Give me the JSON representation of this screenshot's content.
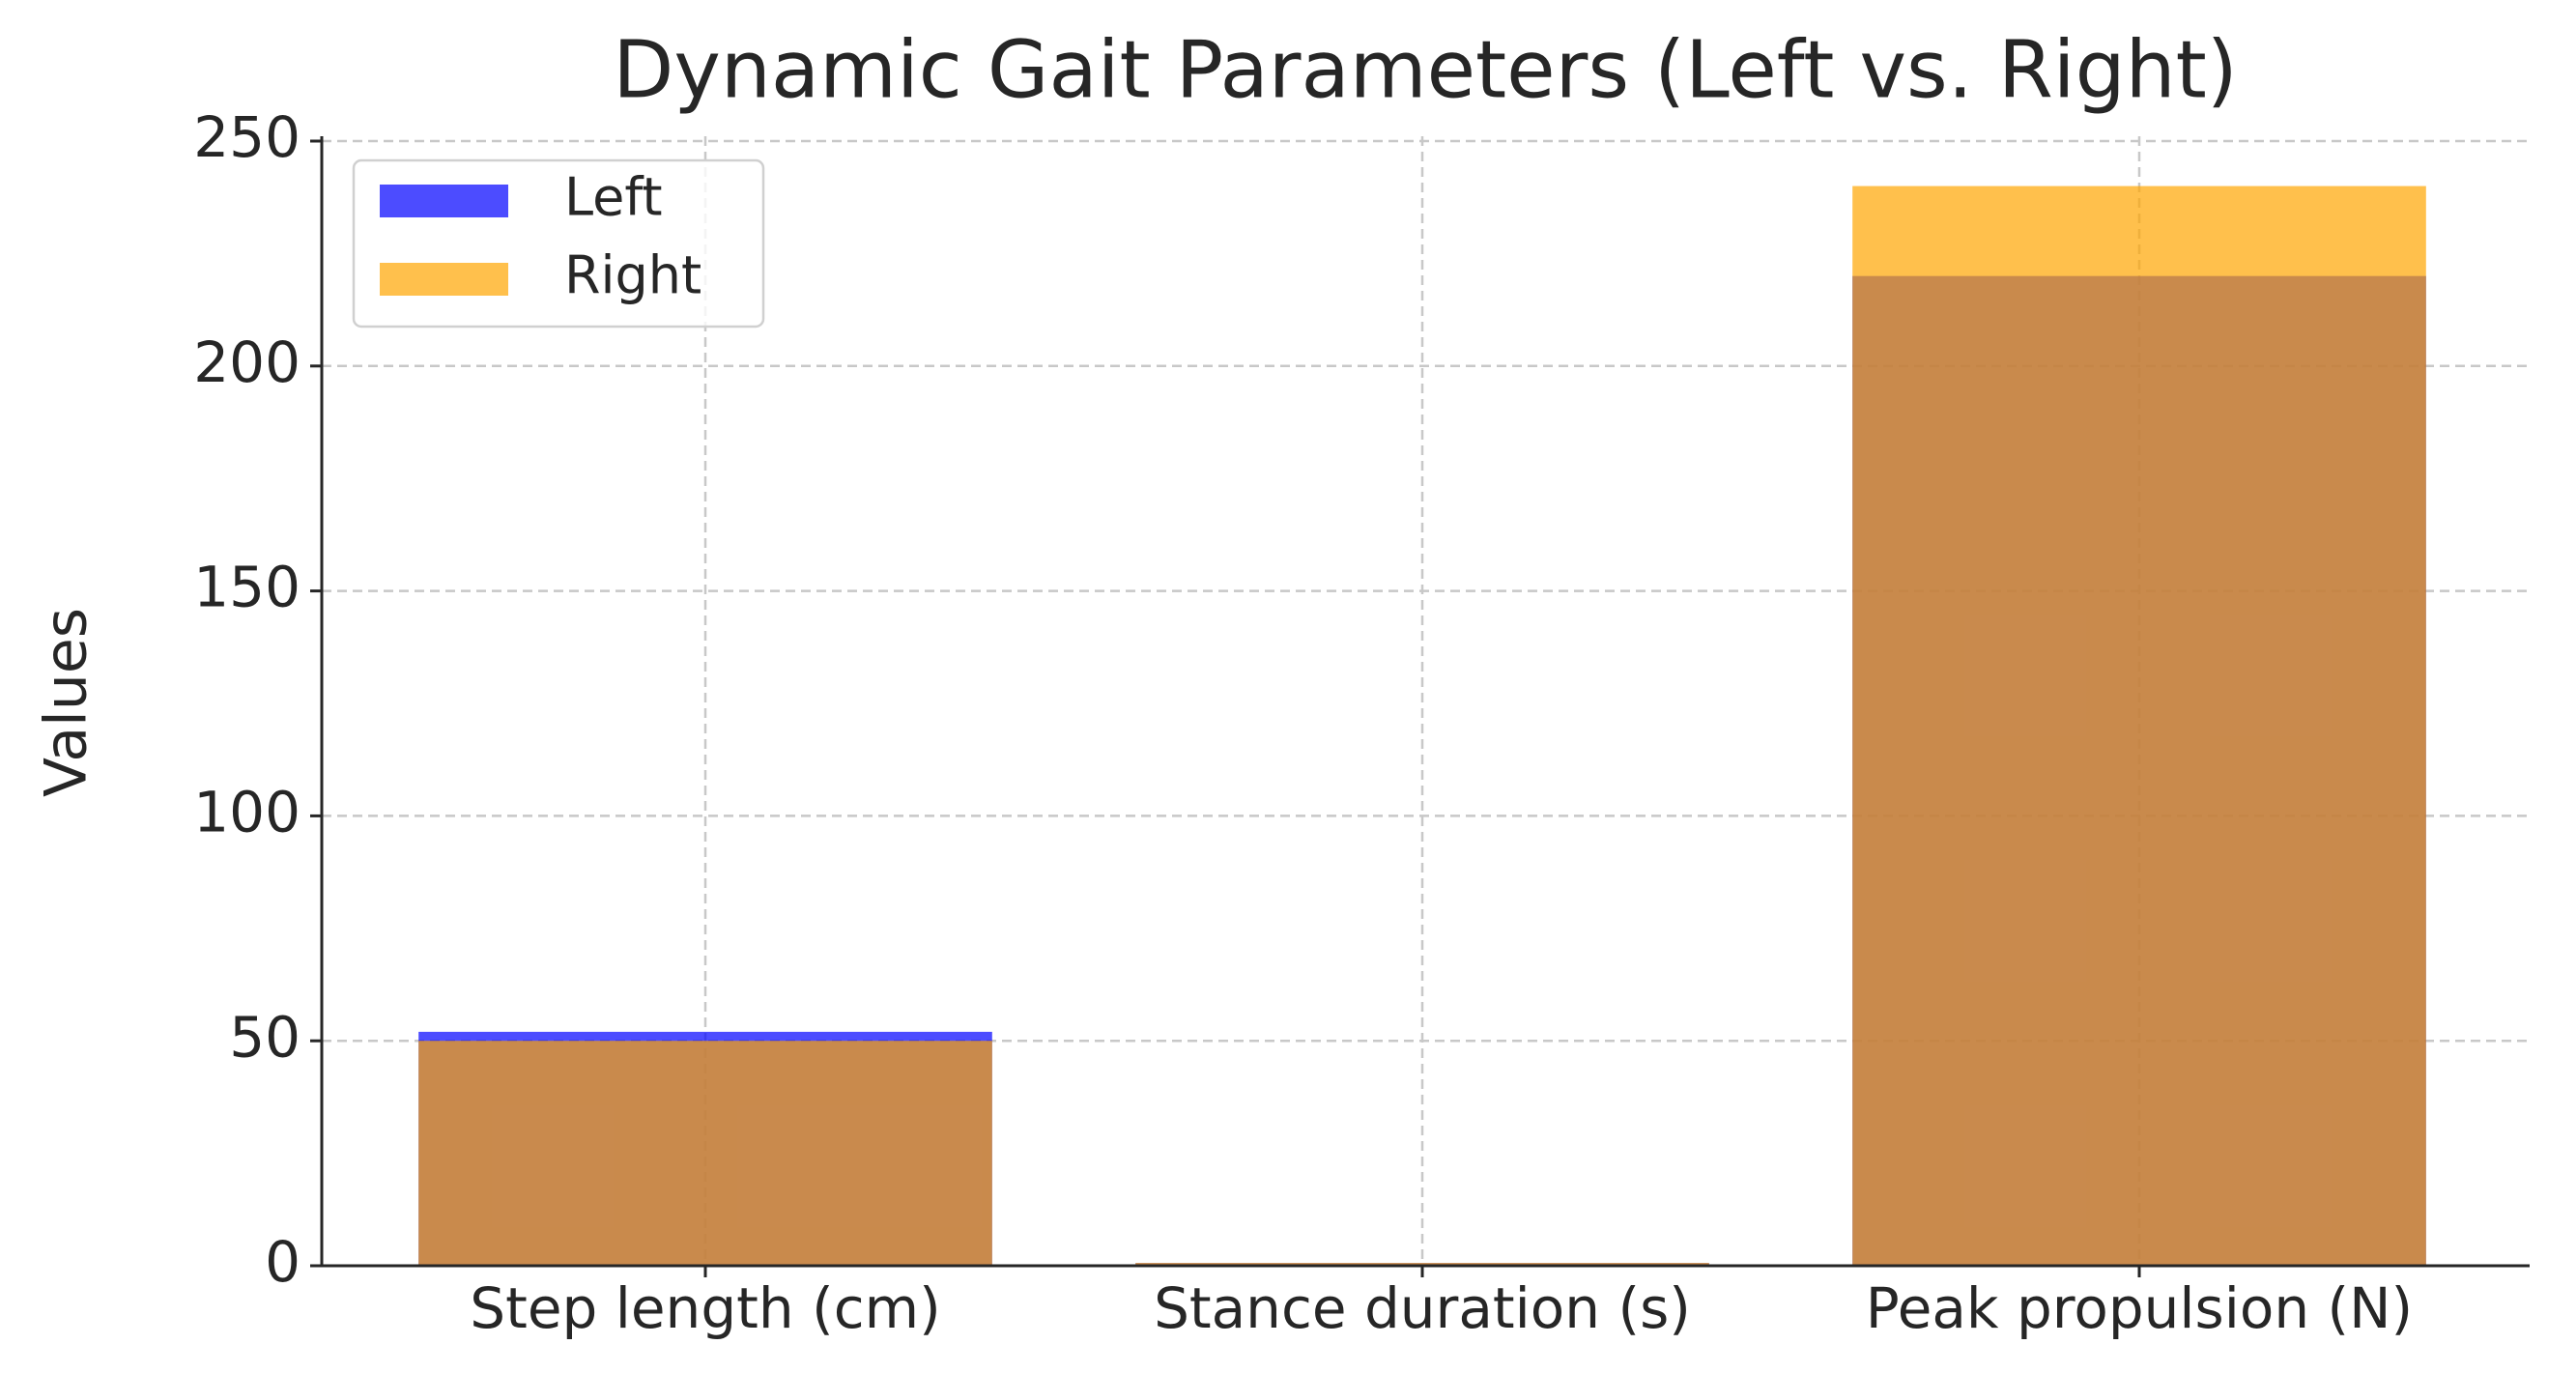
{
  "chart_data": {
    "type": "bar",
    "title": "Dynamic Gait Parameters (Left vs. Right)",
    "y_label": "Values",
    "categories": [
      "Step length (cm)",
      "Stance duration (s)",
      "Peak propulsion (N)"
    ],
    "series": [
      {
        "name": "Left",
        "color": "#0000ff",
        "values": [
          52,
          0.6,
          220
        ]
      },
      {
        "name": "Right",
        "color": "#ffa500",
        "values": [
          50,
          0.62,
          240
        ]
      }
    ],
    "ylim": [
      0,
      250
    ],
    "yticks": [
      0,
      50,
      100,
      150,
      200,
      250
    ],
    "grid": true,
    "legend": "upper left"
  }
}
